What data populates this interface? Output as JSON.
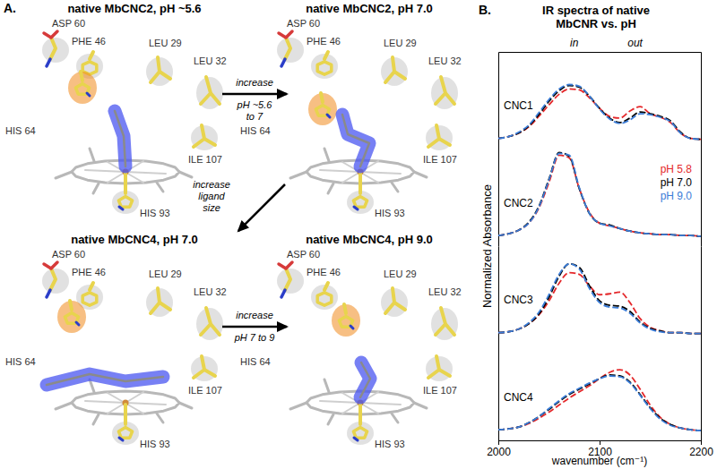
{
  "chart_data": [
    {
      "type": "line",
      "title": "CNC1",
      "line_style": "dashed",
      "tick_labels": false,
      "xlim": [
        2000,
        2200
      ],
      "ylim": [
        -0.1,
        1
      ],
      "annotations": [
        {
          "text": "in",
          "x": 2075
        },
        {
          "text": "out",
          "x": 2135
        }
      ],
      "x": [
        2000,
        2010,
        2020,
        2030,
        2040,
        2050,
        2060,
        2070,
        2080,
        2090,
        2100,
        2110,
        2120,
        2130,
        2140,
        2150,
        2160,
        2170,
        2180,
        2190,
        2200
      ],
      "series": [
        {
          "name": "pH 5.8",
          "color": "#e4282b",
          "values": [
            0.02,
            0.04,
            0.08,
            0.15,
            0.27,
            0.4,
            0.52,
            0.58,
            0.57,
            0.48,
            0.36,
            0.27,
            0.25,
            0.33,
            0.38,
            0.3,
            0.26,
            0.2,
            0.08,
            0.02,
            0.01
          ]
        },
        {
          "name": "pH 7.0",
          "color": "#000000",
          "values": [
            0.02,
            0.04,
            0.08,
            0.16,
            0.29,
            0.44,
            0.56,
            0.62,
            0.6,
            0.5,
            0.36,
            0.25,
            0.2,
            0.25,
            0.32,
            0.3,
            0.27,
            0.22,
            0.09,
            0.02,
            0.01
          ]
        },
        {
          "name": "pH 9.0",
          "color": "#3b7dd8",
          "values": [
            0.02,
            0.04,
            0.09,
            0.17,
            0.31,
            0.46,
            0.58,
            0.63,
            0.61,
            0.5,
            0.35,
            0.24,
            0.19,
            0.23,
            0.3,
            0.29,
            0.26,
            0.21,
            0.08,
            0.02,
            0.01
          ]
        }
      ]
    },
    {
      "type": "line",
      "title": "CNC2",
      "line_style": "dashed",
      "tick_labels": false,
      "legend": "right",
      "xlim": [
        2000,
        2200
      ],
      "ylim": [
        -0.1,
        1
      ],
      "x": [
        2000,
        2010,
        2020,
        2030,
        2040,
        2050,
        2060,
        2070,
        2080,
        2090,
        2100,
        2110,
        2120,
        2130,
        2140,
        2150,
        2160,
        2170,
        2180,
        2190,
        2200
      ],
      "series": [
        {
          "name": "pH 5.8",
          "color": "#e4282b",
          "values": [
            0.02,
            0.04,
            0.08,
            0.16,
            0.33,
            0.62,
            0.93,
            0.9,
            0.55,
            0.28,
            0.16,
            0.13,
            0.1,
            0.07,
            0.05,
            0.04,
            0.03,
            0.03,
            0.02,
            0.02,
            0.01
          ]
        },
        {
          "name": "pH 7.0",
          "color": "#000000",
          "values": [
            0.02,
            0.04,
            0.08,
            0.17,
            0.35,
            0.66,
            0.96,
            0.92,
            0.55,
            0.27,
            0.16,
            0.14,
            0.1,
            0.07,
            0.05,
            0.04,
            0.03,
            0.03,
            0.02,
            0.02,
            0.01
          ]
        },
        {
          "name": "pH 9.0",
          "color": "#3b7dd8",
          "values": [
            0.02,
            0.04,
            0.08,
            0.16,
            0.34,
            0.65,
            0.95,
            0.93,
            0.56,
            0.27,
            0.16,
            0.13,
            0.1,
            0.07,
            0.05,
            0.04,
            0.03,
            0.03,
            0.02,
            0.02,
            0.01
          ]
        }
      ]
    },
    {
      "type": "line",
      "title": "CNC3",
      "line_style": "dashed",
      "tick_labels": false,
      "xlim": [
        2000,
        2200
      ],
      "ylim": [
        -0.1,
        1
      ],
      "x": [
        2000,
        2010,
        2020,
        2030,
        2040,
        2050,
        2060,
        2070,
        2080,
        2090,
        2100,
        2110,
        2120,
        2130,
        2140,
        2150,
        2160,
        2170,
        2180,
        2190,
        2200
      ],
      "series": [
        {
          "name": "pH 5.8",
          "color": "#e4282b",
          "values": [
            0.02,
            0.03,
            0.06,
            0.12,
            0.22,
            0.38,
            0.58,
            0.7,
            0.68,
            0.55,
            0.45,
            0.46,
            0.48,
            0.36,
            0.18,
            0.08,
            0.04,
            0.02,
            0.02,
            0.01,
            0.01
          ]
        },
        {
          "name": "pH 7.0",
          "color": "#000000",
          "values": [
            0.02,
            0.03,
            0.06,
            0.12,
            0.23,
            0.42,
            0.66,
            0.8,
            0.76,
            0.55,
            0.38,
            0.33,
            0.32,
            0.26,
            0.14,
            0.07,
            0.04,
            0.02,
            0.02,
            0.01,
            0.01
          ]
        },
        {
          "name": "pH 9.0",
          "color": "#3b7dd8",
          "values": [
            0.02,
            0.03,
            0.06,
            0.13,
            0.25,
            0.45,
            0.68,
            0.8,
            0.74,
            0.52,
            0.36,
            0.31,
            0.3,
            0.24,
            0.13,
            0.06,
            0.03,
            0.02,
            0.02,
            0.01,
            0.01
          ]
        }
      ]
    },
    {
      "type": "line",
      "title": "CNC4",
      "line_style": "dashed",
      "tick_labels": "x",
      "x_label": "wavenumber (cm⁻¹)",
      "xlim": [
        2000,
        2200
      ],
      "ylim": [
        -0.1,
        1
      ],
      "xticks": [
        2000,
        2100,
        2200
      ],
      "x": [
        2000,
        2010,
        2020,
        2030,
        2040,
        2050,
        2060,
        2070,
        2080,
        2090,
        2100,
        2110,
        2120,
        2130,
        2140,
        2150,
        2160,
        2170,
        2180,
        2190,
        2200
      ],
      "series": [
        {
          "name": "pH 5.8",
          "color": "#e4282b",
          "values": [
            0.02,
            0.03,
            0.05,
            0.09,
            0.15,
            0.22,
            0.3,
            0.38,
            0.45,
            0.52,
            0.6,
            0.67,
            0.7,
            0.64,
            0.48,
            0.3,
            0.16,
            0.08,
            0.04,
            0.02,
            0.01
          ]
        },
        {
          "name": "pH 7.0",
          "color": "#000000",
          "values": [
            0.02,
            0.03,
            0.05,
            0.1,
            0.17,
            0.25,
            0.34,
            0.42,
            0.48,
            0.54,
            0.6,
            0.64,
            0.63,
            0.56,
            0.42,
            0.27,
            0.15,
            0.08,
            0.04,
            0.02,
            0.01
          ]
        },
        {
          "name": "pH 9.0",
          "color": "#3b7dd8",
          "values": [
            0.02,
            0.03,
            0.05,
            0.1,
            0.17,
            0.26,
            0.35,
            0.43,
            0.49,
            0.55,
            0.6,
            0.63,
            0.62,
            0.55,
            0.41,
            0.26,
            0.14,
            0.07,
            0.04,
            0.02,
            0.01
          ]
        }
      ]
    }
  ],
  "panel_b": {
    "label": "B.",
    "title": [
      "IR spectra of native",
      "MbCNR vs. pH"
    ],
    "ylabel": "Normalized Absorbance"
  },
  "panel_a": {
    "label": "A.",
    "structures": [
      {
        "title": "native MbCNC2, pH ~5.6",
        "residues": [
          "ASP 60",
          "PHE 46",
          "LEU 29",
          "LEU 32",
          "HIS 64",
          "ILE 107",
          "HIS 93"
        ]
      },
      {
        "title": "native MbCNC2, pH 7.0",
        "residues": [
          "ASP 60",
          "PHE 46",
          "LEU 29",
          "LEU 32",
          "HIS 64",
          "ILE 107",
          "HIS 93"
        ]
      },
      {
        "title": "native MbCNC4, pH 7.0",
        "residues": [
          "ASP 60",
          "PHE 46",
          "LEU 29",
          "LEU 32",
          "HIS 64",
          "ILE 107",
          "HIS 93"
        ]
      },
      {
        "title": "native MbCNC4, pH 9.0",
        "residues": [
          "ASP 60",
          "PHE 46",
          "LEU 29",
          "LEU 32",
          "HIS 64",
          "ILE 107",
          "HIS 93"
        ]
      }
    ],
    "arrows": [
      {
        "label": [
          "increase",
          "pH ~5.6",
          "to 7"
        ]
      },
      {
        "label": [
          "increase",
          "ligand",
          "size"
        ]
      },
      {
        "label": [
          "increase",
          "pH 7 to 9"
        ]
      }
    ]
  }
}
